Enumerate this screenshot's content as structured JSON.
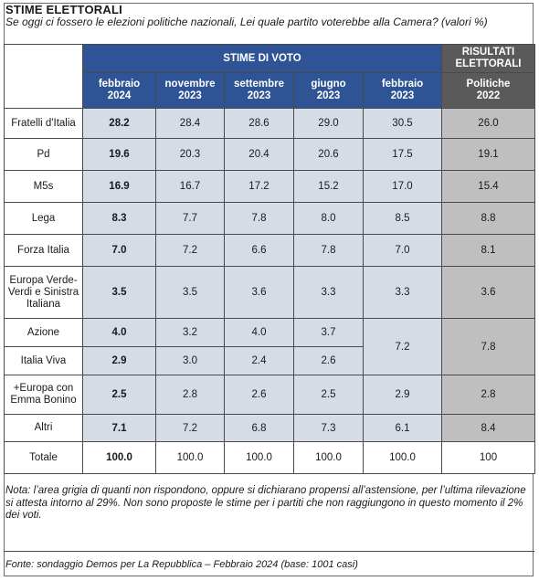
{
  "header": {
    "title": "STIME ELETTORALI",
    "subtitle": "Se oggi ci fossero le elezioni politiche nazionali, Lei quale partito voterebbe alla Camera? (valori %)"
  },
  "table": {
    "group_estimates": "STIME DI VOTO",
    "group_results_line1": "RISULTATI",
    "group_results_line2": "ELETTORALI",
    "columns": [
      {
        "l1": "febbraio",
        "l2": "2024"
      },
      {
        "l1": "novembre",
        "l2": "2023"
      },
      {
        "l1": "settembre",
        "l2": "2023"
      },
      {
        "l1": "giugno",
        "l2": "2023"
      },
      {
        "l1": "febbraio",
        "l2": "2023"
      }
    ],
    "result_col": {
      "l1": "Politiche",
      "l2": "2022"
    },
    "rows": [
      {
        "party": "Fratelli d'Italia",
        "v": [
          "28.2",
          "28.4",
          "28.6",
          "29.0",
          "30.5"
        ],
        "res": "26.0"
      },
      {
        "party": "Pd",
        "v": [
          "19.6",
          "20.3",
          "20.4",
          "20.6",
          "17.5"
        ],
        "res": "19.1"
      },
      {
        "party": "M5s",
        "v": [
          "16.9",
          "16.7",
          "17.2",
          "15.2",
          "17.0"
        ],
        "res": "15.4"
      },
      {
        "party": "Lega",
        "v": [
          "8.3",
          "7.7",
          "7.8",
          "8.0",
          "8.5"
        ],
        "res": "8.8"
      },
      {
        "party": "Forza Italia",
        "v": [
          "7.0",
          "7.2",
          "6.6",
          "7.8",
          "7.0"
        ],
        "res": "8.1"
      },
      {
        "party": "Europa Verde-Verdi e Sinistra Italiana",
        "v": [
          "3.5",
          "3.5",
          "3.6",
          "3.3",
          "3.3"
        ],
        "res": "3.6"
      },
      {
        "party": "Azione",
        "v": [
          "4.0",
          "3.2",
          "4.0",
          "3.7"
        ]
      },
      {
        "party": "Italia Viva",
        "v": [
          "2.9",
          "3.0",
          "2.4",
          "2.6"
        ]
      },
      {
        "party": "+Europa con Emma Bonino",
        "v": [
          "2.5",
          "2.8",
          "2.6",
          "2.5",
          "2.9"
        ],
        "res": "2.8"
      },
      {
        "party": "Altri",
        "v": [
          "7.1",
          "7.2",
          "6.8",
          "7.3",
          "6.1"
        ],
        "res": "8.4"
      }
    ],
    "merged_azione_italiaviva": {
      "feb2023": "7.2",
      "res": "7.8"
    },
    "total": {
      "party": "Totale",
      "v": [
        "100.0",
        "100.0",
        "100.0",
        "100.0",
        "100.0"
      ],
      "res": "100"
    }
  },
  "note_line1": "Nota: l’area grigia di quanti non rispondono, oppure si dichiarano propensi all’astensione, per l’ultima rilevazione",
  "note_line2": "si attesta intorno al 29%. Non sono proposte le stime per i partiti che non raggiungono in questo momento il 2% dei voti.",
  "source": "Fonte: sondaggio Demos per La Repubblica – Febbraio 2024 (base: 1001 casi)",
  "colors": {
    "estimate_header": "#2f5495",
    "result_header": "#5a5a5a",
    "estimate_cell": "#d6dce5",
    "result_cell": "#bfbfbf"
  }
}
